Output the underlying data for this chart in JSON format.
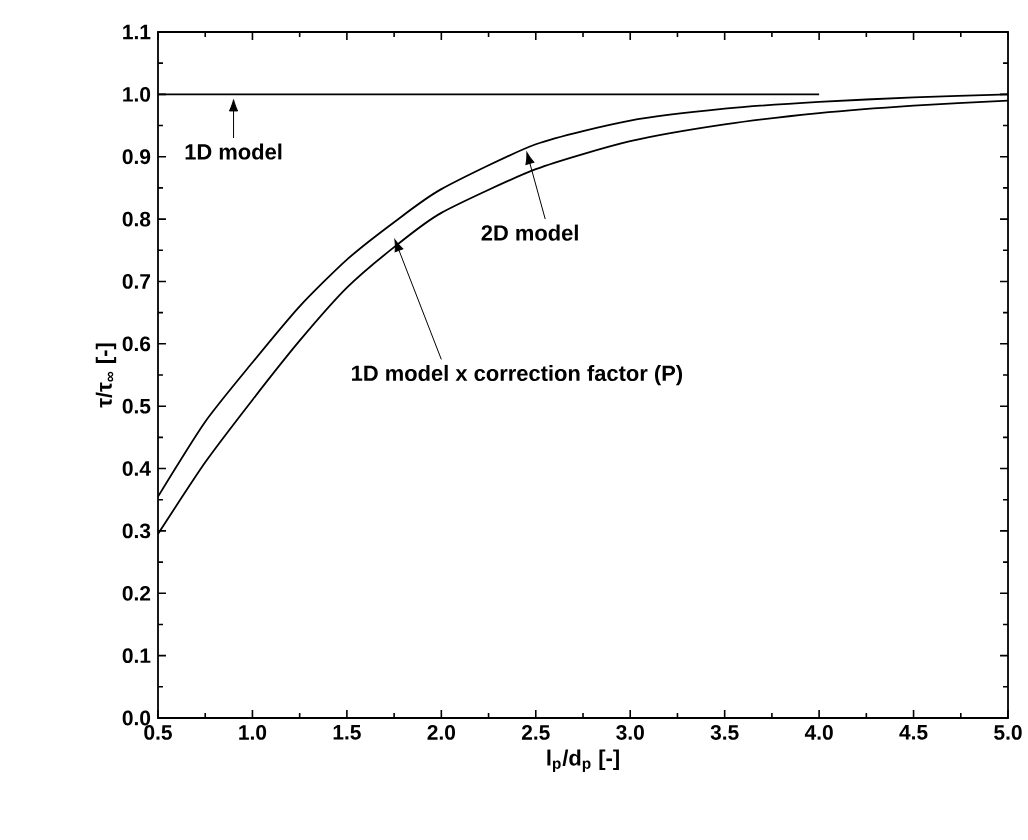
{
  "chart_data": {
    "type": "line",
    "xlabel": "l$_{p}$/d$_{p}$ [-]",
    "ylabel": "τ/τ$_{∞}$ [-]",
    "series": [
      {
        "color": "#000000",
        "x": [
          0.5,
          4.0
        ],
        "values": [
          1.0,
          1.0
        ]
      },
      {
        "color": "#000000",
        "x": [
          0.5,
          0.75,
          1.0,
          1.25,
          1.5,
          1.75,
          2.0,
          2.5,
          3.0,
          3.5,
          4.0,
          4.5,
          5.0
        ],
        "values": [
          0.355,
          0.475,
          0.57,
          0.66,
          0.735,
          0.795,
          0.848,
          0.92,
          0.958,
          0.977,
          0.988,
          0.995,
          1.0
        ]
      },
      {
        "color": "#000000",
        "x": [
          0.5,
          0.75,
          1.0,
          1.25,
          1.5,
          1.75,
          2.0,
          2.5,
          3.0,
          3.5,
          4.0,
          4.5,
          5.0
        ],
        "values": [
          0.295,
          0.41,
          0.51,
          0.605,
          0.69,
          0.755,
          0.81,
          0.88,
          0.925,
          0.952,
          0.97,
          0.982,
          0.99
        ]
      }
    ],
    "annotations": [
      {
        "text": "1D model",
        "x": 0.9,
        "y": 1.0
      },
      {
        "text": "2D model",
        "x": 2.45,
        "y": 0.915
      },
      {
        "text": "1D model x correction factor (P)",
        "x": 1.75,
        "y": 0.775
      }
    ],
    "xlim": [
      0.5,
      5.0
    ],
    "ylim": [
      0.0,
      1.1
    ],
    "xticks": [
      {
        "value": 0.5,
        "label": "0.5"
      },
      {
        "value": 1.0,
        "label": "1.0"
      },
      {
        "value": 1.5,
        "label": "1.5"
      },
      {
        "value": 2.0,
        "label": "2.0"
      },
      {
        "value": 2.5,
        "label": "2.5"
      },
      {
        "value": 3.0,
        "label": "3.0"
      },
      {
        "value": 3.5,
        "label": "3.5"
      },
      {
        "value": 4.0,
        "label": "4.0"
      },
      {
        "value": 4.5,
        "label": "4.5"
      },
      {
        "value": 5.0,
        "label": "5.0"
      }
    ],
    "yticks": [
      {
        "value": 0.0,
        "label": "0.0"
      },
      {
        "value": 0.1,
        "label": "0.1"
      },
      {
        "value": 0.2,
        "label": "0.2"
      },
      {
        "value": 0.3,
        "label": "0.3"
      },
      {
        "value": 0.4,
        "label": "0.4"
      },
      {
        "value": 0.5,
        "label": "0.5"
      },
      {
        "value": 0.6,
        "label": "0.6"
      },
      {
        "value": 0.7,
        "label": "0.7"
      },
      {
        "value": 0.8,
        "label": "0.8"
      },
      {
        "value": 0.9,
        "label": "0.9"
      },
      {
        "value": 1.0,
        "label": "1.0"
      },
      {
        "value": 1.1,
        "label": "1.1"
      }
    ],
    "grid": false,
    "marker": "none",
    "line_style": "solid"
  }
}
